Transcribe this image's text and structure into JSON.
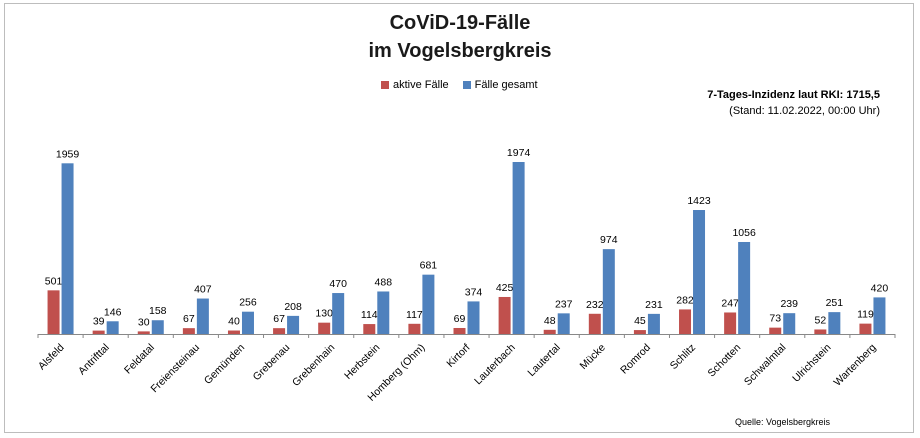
{
  "chart_data": {
    "type": "bar",
    "title": "CoViD-19-Fälle",
    "subtitle": "im Vogelsbergkreis",
    "categories": [
      "Alsfeld",
      "Antrifttal",
      "Feldatal",
      "Freiensteinau",
      "Gemünden",
      "Grebenau",
      "Grebenhain",
      "Herbstein",
      "Homberg (Ohm)",
      "Kirtorf",
      "Lauterbach",
      "Lautertal",
      "Mücke",
      "Romrod",
      "Schlitz",
      "Schotten",
      "Schwalmtal",
      "Ulrichstein",
      "Wartenberg"
    ],
    "series": [
      {
        "name": "aktive Fälle",
        "color": "#c0504d",
        "values": [
          501,
          39,
          30,
          67,
          40,
          67,
          130,
          114,
          117,
          69,
          425,
          48,
          232,
          45,
          282,
          247,
          73,
          52,
          119
        ]
      },
      {
        "name": "Fälle gesamt",
        "color": "#4f81bd",
        "values": [
          1959,
          146,
          158,
          407,
          256,
          208,
          470,
          488,
          681,
          374,
          1974,
          237,
          974,
          231,
          1423,
          1056,
          239,
          251,
          420
        ]
      }
    ],
    "ylim": [
      0,
      2000
    ],
    "grid": false,
    "legend_position": "top-center",
    "annotation": {
      "line1": "7-Tages-Inzidenz laut RKI: 1715,5",
      "line2": "(Stand: 11.02.2022, 00:00 Uhr)"
    },
    "source": "Quelle: Vogelsbergkreis"
  }
}
